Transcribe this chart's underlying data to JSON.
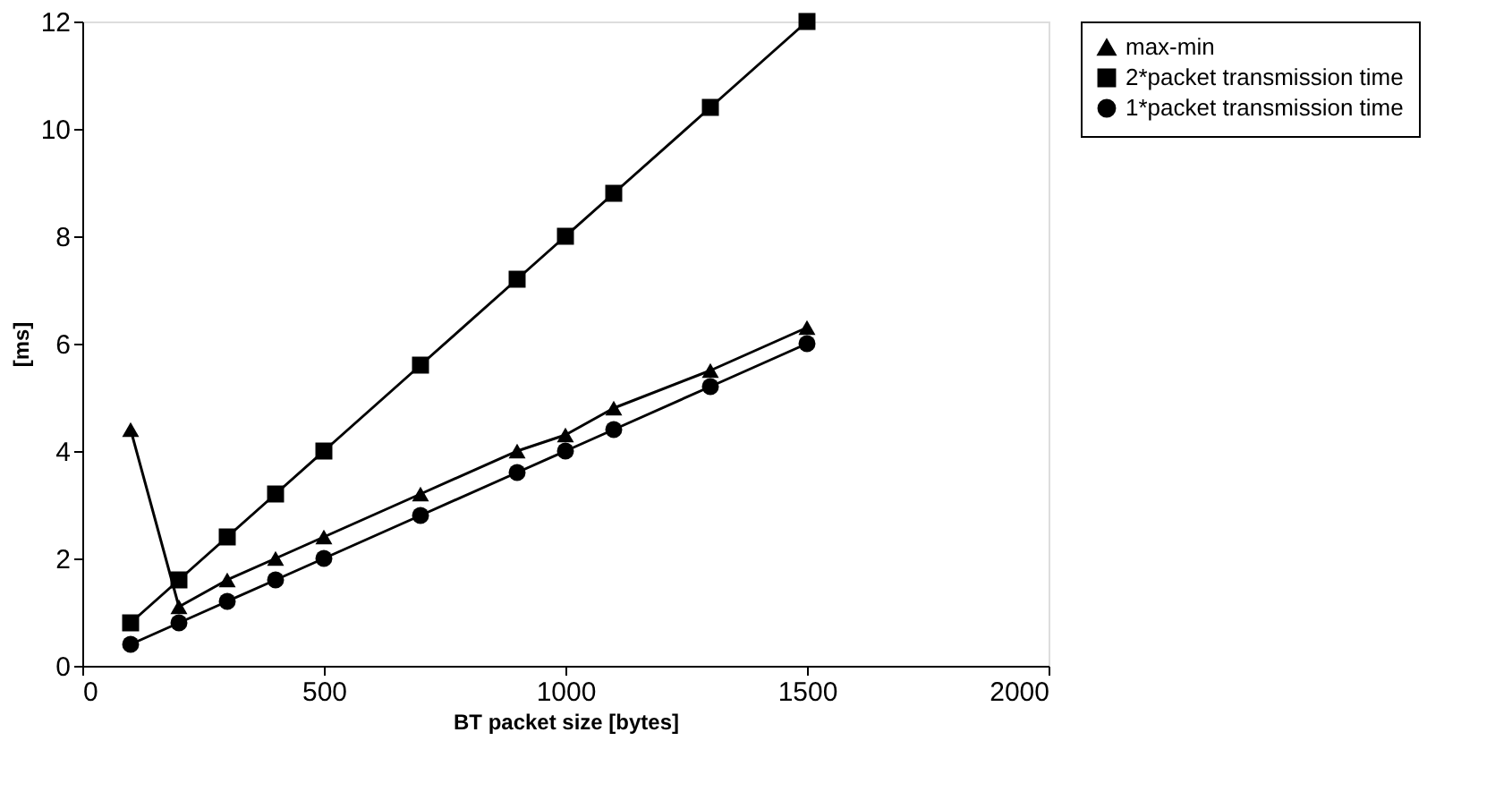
{
  "chart_data": {
    "type": "line",
    "xlabel": "BT packet size [bytes]",
    "ylabel": "[ms]",
    "x": [
      100,
      200,
      300,
      400,
      500,
      700,
      900,
      1000,
      1100,
      1300,
      1500
    ],
    "xlim": [
      0,
      2000
    ],
    "xticks": [
      0,
      500,
      1000,
      1500,
      2000
    ],
    "ylim": [
      0,
      12
    ],
    "yticks": [
      0,
      2,
      4,
      6,
      8,
      10,
      12
    ],
    "grid": false,
    "legend": "right",
    "line_style": "solid",
    "series": [
      {
        "name": "max-min",
        "color": "#000000",
        "marker": "triangle",
        "values": [
          4.4,
          1.1,
          1.6,
          2.0,
          2.4,
          3.2,
          4.0,
          4.3,
          4.8,
          5.5,
          6.3
        ]
      },
      {
        "name": "2*packet transmission time",
        "color": "#000000",
        "marker": "square",
        "values": [
          0.8,
          1.6,
          2.4,
          3.2,
          4.0,
          5.6,
          7.2,
          8.0,
          8.8,
          10.4,
          12.0
        ]
      },
      {
        "name": "1*packet transmission time",
        "color": "#000000",
        "marker": "circle",
        "values": [
          0.4,
          0.8,
          1.2,
          1.6,
          2.0,
          2.8,
          3.6,
          4.0,
          4.4,
          5.2,
          6.0
        ]
      }
    ]
  }
}
